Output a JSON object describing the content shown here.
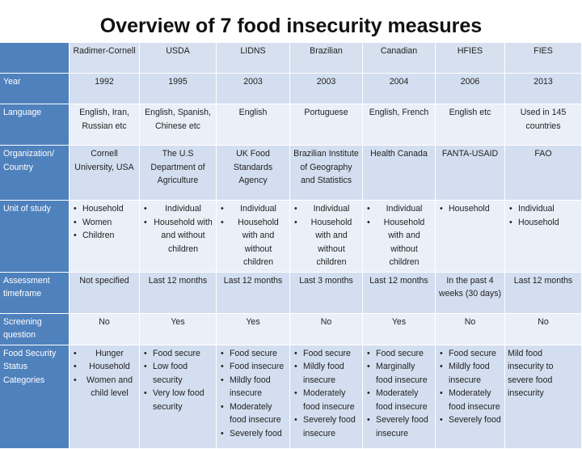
{
  "title": "Overview of 7 food insecurity measures",
  "columns": [
    "Radimer-Cornell",
    "USDA",
    "LIDNS",
    "Brazilian",
    "Canadian",
    "HFIES",
    "FIES"
  ],
  "rows": {
    "year": {
      "label": "Year",
      "values": [
        "1992",
        "1995",
        "2003",
        "2003",
        "2004",
        "2006",
        "2013"
      ]
    },
    "language": {
      "label": "Language",
      "values": [
        "English, Iran, Russian etc",
        "English, Spanish, Chinese etc",
        "English",
        "Portuguese",
        "English, French",
        "English etc",
        "Used in 145 countries"
      ]
    },
    "organization": {
      "label": "Organization/ Country",
      "values": [
        "Cornell University, USA",
        "The U.S Department of Agriculture",
        "UK Food Standards Agency",
        "Brazilian Institute of Geography and Statistics",
        "Health Canada",
        "FANTA-USAID",
        "FAO"
      ]
    },
    "unit": {
      "label": "Unit of study",
      "radimer": [
        "Household",
        "Women",
        "Children"
      ],
      "usda": [
        "Individual",
        "Household with and without children"
      ],
      "lidns": [
        "Individual",
        "Household with and without children"
      ],
      "brazilian": [
        "Individual",
        "Household with and without children"
      ],
      "canadian": [
        "Individual",
        "Household with and without children"
      ],
      "hfies": [
        "Household"
      ],
      "fies": [
        "Individual",
        "Household"
      ]
    },
    "timeframe": {
      "label": "Assessment timeframe",
      "values": [
        "Not specified",
        "Last 12 months",
        "Last 12 months",
        "Last 3 months",
        "Last 12 months",
        "In the past 4 weeks (30 days)",
        "Last 12 months"
      ]
    },
    "screening": {
      "label": "Screening question",
      "values": [
        "No",
        "Yes",
        "Yes",
        "No",
        "Yes",
        "No",
        "No"
      ]
    },
    "status": {
      "label": "Food Security Status Categories",
      "radimer": [
        "Hunger",
        "Household",
        "Women and child level"
      ],
      "usda": [
        "Food secure",
        "Low food security",
        "Very low food security"
      ],
      "lidns": [
        "Food secure",
        "Food insecure",
        "Mildly food insecure",
        "Moderately food insecure",
        "Severely food"
      ],
      "brazilian": [
        "Food secure",
        "Mildly food insecure",
        "Moderately food insecure",
        "Severely food insecure"
      ],
      "canadian": [
        "Food secure",
        "Marginally food insecure",
        "Moderately food insecure",
        "Severely food insecure"
      ],
      "hfies": [
        "Food secure",
        "Mildly food insecure",
        "Moderately food insecure",
        "Severely food"
      ],
      "fies": "Mild food insecurity to severe food insecurity"
    }
  }
}
